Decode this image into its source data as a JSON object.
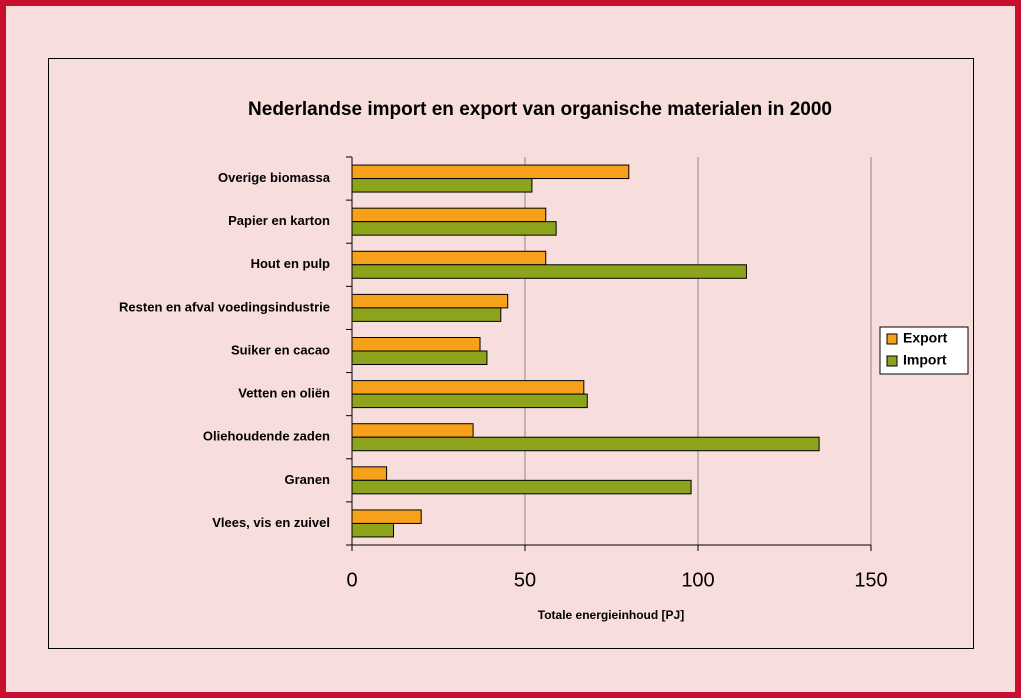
{
  "chart_data": {
    "type": "bar",
    "orientation": "horizontal",
    "title": "Nederlandse import en export van organische materialen in 2000",
    "xlabel": "Totale energieinhoud [PJ]",
    "categories": [
      "Overige biomassa",
      "Papier en karton",
      "Hout en pulp",
      "Resten en afval voedingsindustrie",
      "Suiker en cacao",
      "Vetten en oliën",
      "Oliehoudende zaden",
      "Granen",
      "Vlees, vis en zuivel"
    ],
    "series": [
      {
        "name": "Export",
        "color": "#f7a11a",
        "values": [
          80,
          56,
          56,
          45,
          37,
          67,
          35,
          10,
          20
        ]
      },
      {
        "name": "Import",
        "color": "#8ca31b",
        "values": [
          52,
          59,
          114,
          43,
          39,
          68,
          135,
          98,
          12
        ]
      }
    ],
    "xlim": [
      0,
      150
    ],
    "xticks": [
      0,
      50,
      100,
      150
    ],
    "grid": true,
    "legend": "right"
  }
}
